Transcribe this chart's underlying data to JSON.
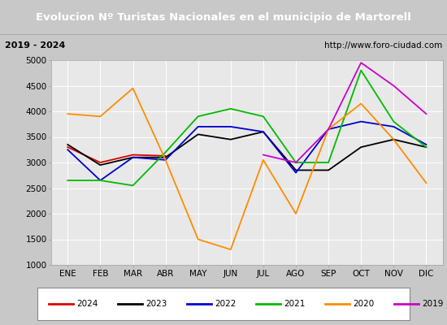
{
  "title": "Evolucion Nº Turistas Nacionales en el municipio de Martorell",
  "subtitle_left": "2019 - 2024",
  "subtitle_right": "http://www.foro-ciudad.com",
  "months": [
    "ENE",
    "FEB",
    "MAR",
    "ABR",
    "MAY",
    "JUN",
    "JUL",
    "AGO",
    "SEP",
    "OCT",
    "NOV",
    "DIC"
  ],
  "ylim": [
    1000,
    5000
  ],
  "yticks": [
    1000,
    1500,
    2000,
    2500,
    3000,
    3500,
    4000,
    4500,
    5000
  ],
  "series": [
    {
      "year": "2024",
      "color": "#dd0000",
      "data": [
        3300,
        3000,
        3150,
        3130,
        null,
        null,
        null,
        null,
        null,
        null,
        null,
        null
      ]
    },
    {
      "year": "2023",
      "color": "#000000",
      "data": [
        3350,
        2950,
        3100,
        3100,
        3550,
        3450,
        3600,
        2850,
        2850,
        3300,
        3450,
        3300
      ]
    },
    {
      "year": "2022",
      "color": "#0000cc",
      "data": [
        3250,
        2650,
        3100,
        3050,
        3700,
        3700,
        3600,
        2800,
        3650,
        3800,
        3700,
        3350
      ]
    },
    {
      "year": "2021",
      "color": "#00bb00",
      "data": [
        2650,
        2650,
        2550,
        3200,
        3900,
        4050,
        3900,
        3000,
        3000,
        4800,
        3800,
        3300
      ]
    },
    {
      "year": "2020",
      "color": "#ff8c00",
      "data": [
        3950,
        3900,
        4450,
        3050,
        1500,
        1300,
        3050,
        2000,
        3650,
        4150,
        3450,
        2600
      ]
    },
    {
      "year": "2019",
      "color": "#cc00cc",
      "data": [
        null,
        null,
        null,
        null,
        null,
        null,
        3150,
        3000,
        3650,
        4950,
        4500,
        3950
      ]
    }
  ],
  "fig_bg": "#c8c8c8",
  "title_bg": "#4f81bd",
  "title_color": "#ffffff",
  "subtitle_bg": "#d4d4d4",
  "plot_bg": "#e8e8e8",
  "grid_color": "#ffffff",
  "legend_bg": "#ffffff",
  "legend_border": "#888888"
}
